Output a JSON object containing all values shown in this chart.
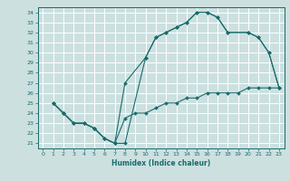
{
  "xlabel": "Humidex (Indice chaleur)",
  "xlim": [
    -0.5,
    23.5
  ],
  "ylim": [
    20.5,
    34.5
  ],
  "xticks": [
    0,
    1,
    2,
    3,
    4,
    5,
    6,
    7,
    8,
    9,
    10,
    11,
    12,
    13,
    14,
    15,
    16,
    17,
    18,
    19,
    20,
    21,
    22,
    23
  ],
  "yticks": [
    21,
    22,
    23,
    24,
    25,
    26,
    27,
    28,
    29,
    30,
    31,
    32,
    33,
    34
  ],
  "line_color": "#1a6b6b",
  "bg_color": "#cce0e0",
  "grid_color": "#ffffff",
  "lines": [
    {
      "x": [
        1,
        2,
        3,
        4,
        5,
        6,
        7,
        8,
        10,
        11,
        12,
        13,
        14,
        15,
        16,
        17,
        18,
        20,
        21,
        22,
        23
      ],
      "y": [
        25,
        24,
        23,
        23,
        22.5,
        21.5,
        21,
        21,
        29.5,
        31.5,
        32,
        32.5,
        33,
        34,
        34,
        33.5,
        32,
        32,
        31.5,
        30,
        26.5
      ]
    },
    {
      "x": [
        1,
        2,
        3,
        4,
        5,
        6,
        7,
        8,
        10,
        11,
        12,
        13,
        14,
        15,
        16,
        17,
        18,
        20,
        21,
        22,
        23
      ],
      "y": [
        25,
        24,
        23,
        23,
        22.5,
        21.5,
        21,
        27,
        29.5,
        31.5,
        32,
        32.5,
        33,
        34,
        34,
        33.5,
        32,
        32,
        31.5,
        30,
        26.5
      ]
    },
    {
      "x": [
        1,
        2,
        3,
        4,
        5,
        6,
        7,
        8,
        9,
        10,
        11,
        12,
        13,
        14,
        15,
        16,
        17,
        18,
        19,
        20,
        21,
        22,
        23
      ],
      "y": [
        25,
        24,
        23,
        23,
        22.5,
        21.5,
        21,
        23.5,
        24,
        24,
        24.5,
        25,
        25,
        25.5,
        25.5,
        26,
        26,
        26,
        26,
        26.5,
        26.5,
        26.5,
        26.5
      ]
    }
  ]
}
